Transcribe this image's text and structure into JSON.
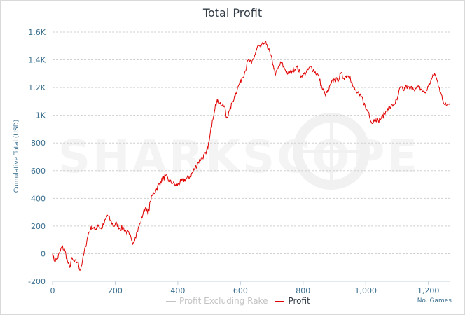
{
  "chart_data": {
    "type": "line",
    "title": "Total Profit",
    "ylabel": "Cumulative Total (USD)",
    "xlabel": "No. Games",
    "ylim": [
      -200,
      1600
    ],
    "xlim": [
      0,
      1270
    ],
    "y_ticks": [
      -200,
      0,
      200,
      400,
      600,
      800,
      1000,
      1200,
      1400,
      1600
    ],
    "y_tick_labels": [
      "-200",
      "0",
      "200",
      "400",
      "600",
      "800",
      "1K",
      "1.2K",
      "1.4K",
      "1.6K"
    ],
    "x_ticks": [
      0,
      200,
      400,
      600,
      800,
      1000,
      1200
    ],
    "x_tick_labels": [
      "0",
      "200",
      "400",
      "600",
      "800",
      "1,000",
      "1,200"
    ],
    "grid": "horizontal dashed",
    "legend_position": "bottom-center",
    "series": [
      {
        "name": "Profit Excluding Rake",
        "color": "#c3c3c3",
        "hidden": true,
        "points": []
      },
      {
        "name": "Profit",
        "color": "#e00000",
        "points": [
          [
            0,
            0
          ],
          [
            5,
            -50
          ],
          [
            15,
            -40
          ],
          [
            25,
            20
          ],
          [
            30,
            50
          ],
          [
            40,
            20
          ],
          [
            48,
            -60
          ],
          [
            55,
            -100
          ],
          [
            60,
            -40
          ],
          [
            70,
            -60
          ],
          [
            80,
            -60
          ],
          [
            88,
            -120
          ],
          [
            95,
            -60
          ],
          [
            105,
            50
          ],
          [
            115,
            150
          ],
          [
            125,
            200
          ],
          [
            135,
            170
          ],
          [
            145,
            210
          ],
          [
            155,
            180
          ],
          [
            165,
            220
          ],
          [
            175,
            280
          ],
          [
            185,
            240
          ],
          [
            195,
            200
          ],
          [
            205,
            220
          ],
          [
            215,
            180
          ],
          [
            225,
            190
          ],
          [
            235,
            160
          ],
          [
            245,
            140
          ],
          [
            252,
            100
          ],
          [
            258,
            80
          ],
          [
            264,
            120
          ],
          [
            270,
            160
          ],
          [
            280,
            220
          ],
          [
            290,
            300
          ],
          [
            298,
            340
          ],
          [
            305,
            280
          ],
          [
            312,
            380
          ],
          [
            320,
            430
          ],
          [
            330,
            460
          ],
          [
            345,
            520
          ],
          [
            360,
            560
          ],
          [
            375,
            520
          ],
          [
            385,
            510
          ],
          [
            395,
            490
          ],
          [
            410,
            520
          ],
          [
            425,
            540
          ],
          [
            440,
            560
          ],
          [
            455,
            620
          ],
          [
            465,
            660
          ],
          [
            475,
            690
          ],
          [
            490,
            720
          ],
          [
            500,
            810
          ],
          [
            510,
            960
          ],
          [
            520,
            1080
          ],
          [
            530,
            1110
          ],
          [
            540,
            1070
          ],
          [
            550,
            1060
          ],
          [
            555,
            980
          ],
          [
            565,
            1030
          ],
          [
            575,
            1100
          ],
          [
            585,
            1160
          ],
          [
            595,
            1220
          ],
          [
            605,
            1270
          ],
          [
            615,
            1320
          ],
          [
            625,
            1400
          ],
          [
            635,
            1370
          ],
          [
            645,
            1430
          ],
          [
            655,
            1500
          ],
          [
            665,
            1490
          ],
          [
            675,
            1520
          ],
          [
            685,
            1510
          ],
          [
            695,
            1440
          ],
          [
            705,
            1360
          ],
          [
            712,
            1290
          ],
          [
            720,
            1340
          ],
          [
            730,
            1380
          ],
          [
            740,
            1340
          ],
          [
            752,
            1300
          ],
          [
            765,
            1320
          ],
          [
            780,
            1350
          ],
          [
            795,
            1280
          ],
          [
            810,
            1310
          ],
          [
            825,
            1350
          ],
          [
            835,
            1320
          ],
          [
            848,
            1290
          ],
          [
            860,
            1200
          ],
          [
            870,
            1150
          ],
          [
            880,
            1170
          ],
          [
            890,
            1230
          ],
          [
            900,
            1260
          ],
          [
            910,
            1250
          ],
          [
            920,
            1300
          ],
          [
            930,
            1270
          ],
          [
            940,
            1290
          ],
          [
            950,
            1280
          ],
          [
            960,
            1200
          ],
          [
            970,
            1170
          ],
          [
            980,
            1140
          ],
          [
            990,
            1120
          ],
          [
            1000,
            1050
          ],
          [
            1010,
            1020
          ],
          [
            1020,
            940
          ],
          [
            1030,
            980
          ],
          [
            1040,
            960
          ],
          [
            1050,
            980
          ],
          [
            1060,
            1010
          ],
          [
            1070,
            1050
          ],
          [
            1080,
            1060
          ],
          [
            1090,
            1080
          ],
          [
            1100,
            1110
          ],
          [
            1110,
            1200
          ],
          [
            1120,
            1180
          ],
          [
            1130,
            1210
          ],
          [
            1140,
            1190
          ],
          [
            1150,
            1200
          ],
          [
            1160,
            1190
          ],
          [
            1170,
            1200
          ],
          [
            1180,
            1180
          ],
          [
            1190,
            1160
          ],
          [
            1200,
            1210
          ],
          [
            1210,
            1260
          ],
          [
            1220,
            1300
          ],
          [
            1228,
            1250
          ],
          [
            1235,
            1200
          ],
          [
            1240,
            1160
          ],
          [
            1245,
            1110
          ],
          [
            1250,
            1080
          ],
          [
            1255,
            1090
          ],
          [
            1262,
            1080
          ],
          [
            1268,
            1085
          ]
        ]
      }
    ]
  },
  "watermark": {
    "text": "SHARKSCOPE"
  }
}
